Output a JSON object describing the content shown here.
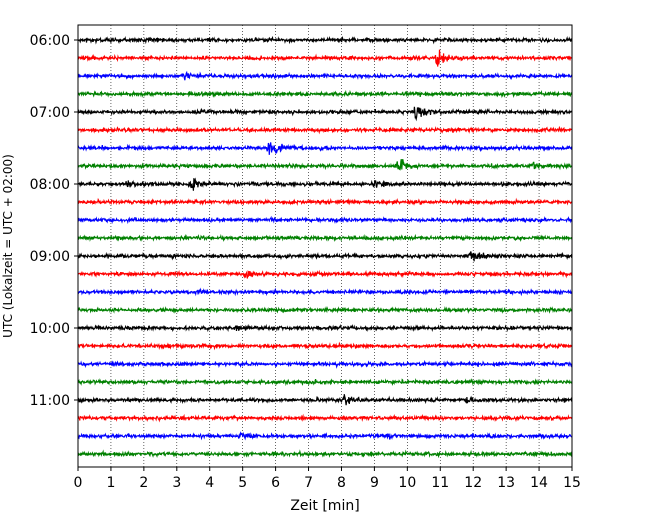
{
  "chart_data": {
    "type": "line",
    "title": "",
    "xlabel": "Zeit  [min]",
    "ylabel": "UTC (Lokalzeit = UTC + 02:00)",
    "xlim": [
      0,
      15
    ],
    "x_ticks": [
      "0",
      "1",
      "2",
      "3",
      "4",
      "5",
      "6",
      "7",
      "8",
      "9",
      "10",
      "11",
      "12",
      "13",
      "14",
      "15"
    ],
    "y_ticks": [
      "06:00",
      "07:00",
      "08:00",
      "09:00",
      "10:00",
      "11:00"
    ],
    "grid": "vertical dotted",
    "trace_interval_min": 15,
    "trace_start": "06:00",
    "trace_colors": [
      "#000000",
      "#ff0000",
      "#0000ff",
      "#008000"
    ],
    "traces": [
      {
        "start": "06:00",
        "color": "#000000",
        "events": []
      },
      {
        "start": "06:15",
        "color": "#ff0000",
        "events": [
          {
            "t": 10.9,
            "amp": 1.0
          }
        ]
      },
      {
        "start": "06:30",
        "color": "#0000ff",
        "events": [
          {
            "t": 3.2,
            "amp": 0.35
          }
        ]
      },
      {
        "start": "06:45",
        "color": "#008000",
        "events": []
      },
      {
        "start": "07:00",
        "color": "#000000",
        "events": [
          {
            "t": 10.25,
            "amp": 0.95
          }
        ]
      },
      {
        "start": "07:15",
        "color": "#ff0000",
        "events": []
      },
      {
        "start": "07:30",
        "color": "#0000ff",
        "events": [
          {
            "t": 5.8,
            "amp": 1.0
          }
        ]
      },
      {
        "start": "07:45",
        "color": "#008000",
        "events": [
          {
            "t": 9.7,
            "amp": 0.8
          },
          {
            "t": 13.8,
            "amp": 0.25
          }
        ]
      },
      {
        "start": "08:00",
        "color": "#000000",
        "events": [
          {
            "t": 1.5,
            "amp": 0.3
          },
          {
            "t": 3.45,
            "amp": 0.6
          },
          {
            "t": 9.0,
            "amp": 0.3
          }
        ]
      },
      {
        "start": "08:15",
        "color": "#ff0000",
        "events": []
      },
      {
        "start": "08:30",
        "color": "#0000ff",
        "events": []
      },
      {
        "start": "08:45",
        "color": "#008000",
        "events": []
      },
      {
        "start": "09:00",
        "color": "#000000",
        "events": [
          {
            "t": 11.9,
            "amp": 0.5
          }
        ]
      },
      {
        "start": "09:15",
        "color": "#ff0000",
        "events": [
          {
            "t": 5.1,
            "amp": 0.3
          }
        ]
      },
      {
        "start": "09:30",
        "color": "#0000ff",
        "events": []
      },
      {
        "start": "09:45",
        "color": "#008000",
        "events": []
      },
      {
        "start": "10:00",
        "color": "#000000",
        "events": [
          {
            "t": 4.8,
            "amp": 0.3
          }
        ]
      },
      {
        "start": "10:15",
        "color": "#ff0000",
        "events": []
      },
      {
        "start": "10:30",
        "color": "#0000ff",
        "events": []
      },
      {
        "start": "10:45",
        "color": "#008000",
        "events": []
      },
      {
        "start": "11:00",
        "color": "#000000",
        "events": [
          {
            "t": 8.1,
            "amp": 0.6
          },
          {
            "t": 11.8,
            "amp": 0.25
          }
        ]
      },
      {
        "start": "11:15",
        "color": "#ff0000",
        "events": []
      },
      {
        "start": "11:30",
        "color": "#0000ff",
        "events": [
          {
            "t": 4.9,
            "amp": 0.25
          },
          {
            "t": 9.4,
            "amp": 0.25
          }
        ]
      },
      {
        "start": "11:45",
        "color": "#008000",
        "events": []
      }
    ]
  }
}
